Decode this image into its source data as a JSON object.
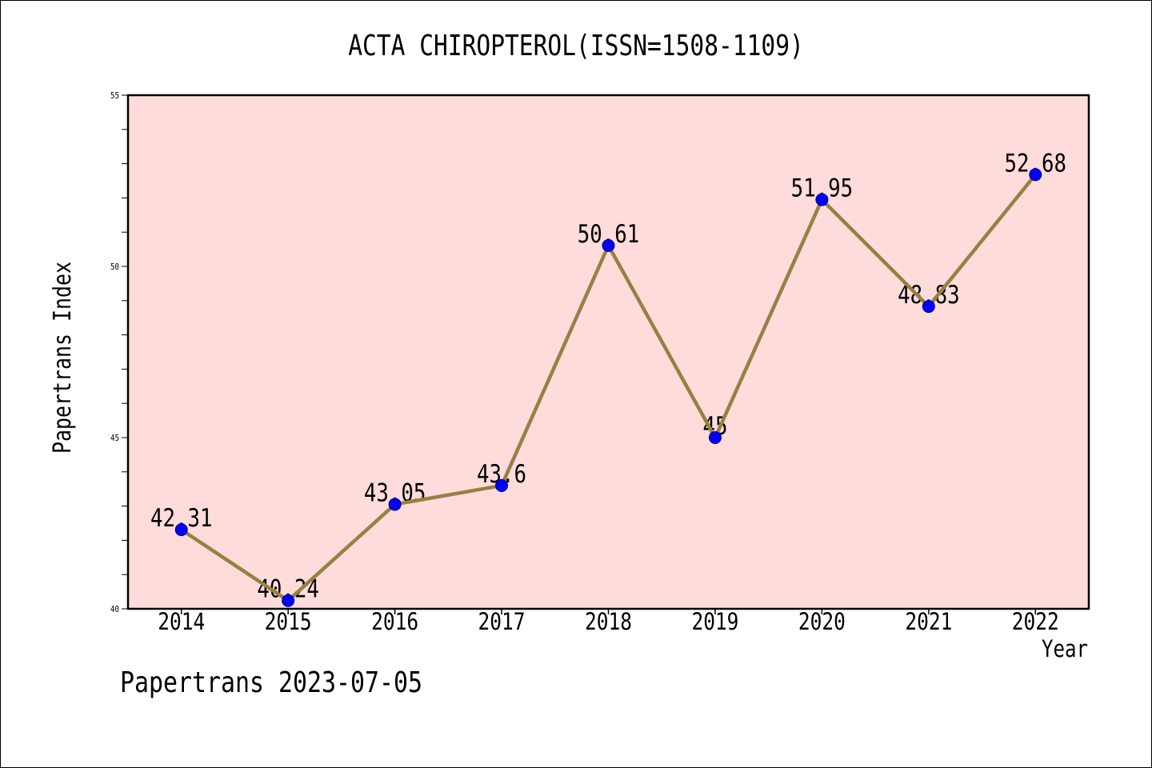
{
  "chart_data": {
    "type": "line",
    "title": "ACTA CHIROPTEROL(ISSN=1508-1109)",
    "xlabel": "Year",
    "ylabel": "Papertrans Index",
    "categories": [
      "2014",
      "2015",
      "2016",
      "2017",
      "2018",
      "2019",
      "2020",
      "2021",
      "2022"
    ],
    "values": [
      42.31,
      40.24,
      43.05,
      43.6,
      50.61,
      45,
      51.95,
      48.83,
      52.68
    ],
    "show_data_labels": true,
    "ylim": [
      40,
      55
    ],
    "yticks": [
      40,
      45,
      50,
      55
    ],
    "y_minor_step": 1,
    "grid": false,
    "colors": {
      "plot_background": "#FDDCDB",
      "line": "#998043",
      "marker": "#0000FF",
      "marker_edge": "#00008B",
      "axis": "#000000"
    }
  },
  "footer": {
    "text": "Papertrans 2023-07-05"
  }
}
